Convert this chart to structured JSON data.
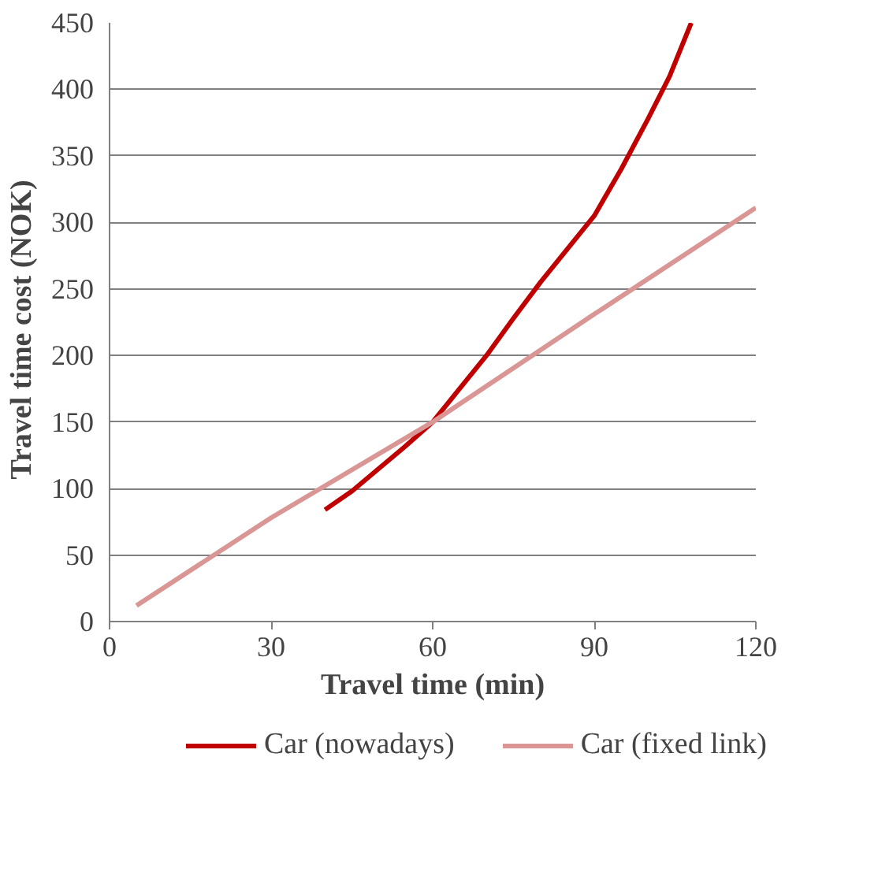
{
  "chart_data": {
    "type": "line",
    "xlabel": "Travel time (min)",
    "ylabel": "Travel  time  cost (NOK)",
    "xlim": [
      0,
      120
    ],
    "xticks": [
      0,
      30,
      60,
      90,
      120
    ],
    "ylim": [
      0,
      450
    ],
    "yticks": [
      0,
      50,
      100,
      150,
      200,
      250,
      300,
      350,
      400,
      450
    ],
    "grid": "y",
    "legend": "bottom",
    "marker": "none",
    "line_style": "solid",
    "series": [
      {
        "name": "Car (nowadays)",
        "color": "#c00000",
        "x": [
          40,
          45,
          50,
          55,
          60,
          65,
          70,
          75,
          80,
          85,
          90,
          95,
          100,
          104,
          108
        ],
        "values": [
          84,
          98,
          115,
          132,
          150,
          175,
          200,
          228,
          255,
          280,
          305,
          340,
          378,
          410,
          450
        ]
      },
      {
        "name": "Car (fixed link)",
        "color": "#d99694",
        "x": [
          5,
          30,
          60,
          90,
          120
        ],
        "values": [
          12,
          78,
          150,
          231,
          311
        ]
      }
    ]
  }
}
